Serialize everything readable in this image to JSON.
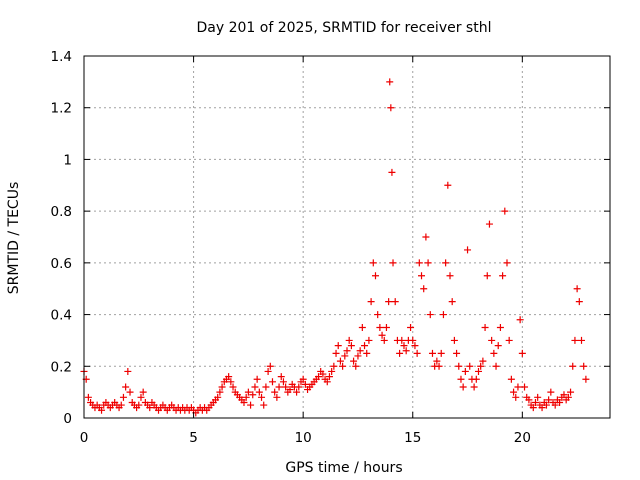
{
  "chart_data": {
    "type": "scatter",
    "title": "Day 201 of 2025, SRMTID for receiver sthl",
    "xlabel": "GPS time / hours",
    "ylabel": "SRMTID / TECUs",
    "xlim": [
      0,
      24
    ],
    "ylim": [
      0,
      1.4
    ],
    "xticks": [
      0,
      5,
      10,
      15,
      20
    ],
    "xtick_labels": [
      "0",
      "5",
      "10",
      "15",
      "20"
    ],
    "yticks": [
      0,
      0.2,
      0.4,
      0.6,
      0.8,
      1,
      1.2,
      1.4
    ],
    "ytick_labels": [
      "0",
      "0.2",
      "0.4",
      "0.6",
      "0.8",
      "1",
      "1.2",
      "1.4"
    ],
    "grid": true,
    "marker": "+",
    "color": "#ee0000",
    "series": [
      {
        "name": "SRMTID sthl",
        "x": [
          0.0,
          0.1,
          0.2,
          0.3,
          0.4,
          0.5,
          0.6,
          0.7,
          0.8,
          0.9,
          1.0,
          1.1,
          1.2,
          1.3,
          1.4,
          1.5,
          1.6,
          1.7,
          1.8,
          1.9,
          2.0,
          2.1,
          2.2,
          2.3,
          2.4,
          2.5,
          2.6,
          2.7,
          2.8,
          2.9,
          3.0,
          3.1,
          3.2,
          3.3,
          3.4,
          3.5,
          3.6,
          3.7,
          3.8,
          3.9,
          4.0,
          4.1,
          4.2,
          4.3,
          4.4,
          4.5,
          4.6,
          4.7,
          4.8,
          4.9,
          5.0,
          5.1,
          5.2,
          5.3,
          5.4,
          5.5,
          5.6,
          5.7,
          5.8,
          5.9,
          6.0,
          6.1,
          6.2,
          6.3,
          6.4,
          6.5,
          6.6,
          6.7,
          6.8,
          6.9,
          7.0,
          7.1,
          7.2,
          7.3,
          7.4,
          7.5,
          7.6,
          7.7,
          7.8,
          7.9,
          8.0,
          8.1,
          8.2,
          8.3,
          8.4,
          8.5,
          8.6,
          8.7,
          8.8,
          8.9,
          9.0,
          9.1,
          9.2,
          9.3,
          9.4,
          9.5,
          9.6,
          9.7,
          9.8,
          9.9,
          10.0,
          10.1,
          10.2,
          10.3,
          10.4,
          10.5,
          10.6,
          10.7,
          10.8,
          10.9,
          11.0,
          11.1,
          11.2,
          11.3,
          11.4,
          11.5,
          11.6,
          11.7,
          11.8,
          11.9,
          12.0,
          12.1,
          12.2,
          12.3,
          12.4,
          12.5,
          12.6,
          12.7,
          12.8,
          12.9,
          13.0,
          13.1,
          13.2,
          13.3,
          13.4,
          13.5,
          13.6,
          13.7,
          13.8,
          13.9,
          13.95,
          14.0,
          14.05,
          14.1,
          14.2,
          14.3,
          14.4,
          14.5,
          14.6,
          14.7,
          14.8,
          14.9,
          15.0,
          15.1,
          15.2,
          15.3,
          15.4,
          15.5,
          15.6,
          15.7,
          15.8,
          15.9,
          16.0,
          16.1,
          16.2,
          16.3,
          16.4,
          16.5,
          16.6,
          16.7,
          16.8,
          16.9,
          17.0,
          17.1,
          17.2,
          17.3,
          17.4,
          17.5,
          17.6,
          17.7,
          17.8,
          17.9,
          18.0,
          18.1,
          18.2,
          18.3,
          18.4,
          18.5,
          18.6,
          18.7,
          18.8,
          18.9,
          19.0,
          19.1,
          19.2,
          19.3,
          19.4,
          19.5,
          19.6,
          19.7,
          19.8,
          19.9,
          20.0,
          20.1,
          20.2,
          20.3,
          20.4,
          20.5,
          20.6,
          20.7,
          20.8,
          20.9,
          21.0,
          21.1,
          21.2,
          21.3,
          21.4,
          21.5,
          21.6,
          21.7,
          21.8,
          21.9,
          22.0,
          22.1,
          22.2,
          22.3,
          22.4,
          22.5,
          22.6,
          22.7,
          22.8,
          22.9
        ],
        "y": [
          0.18,
          0.15,
          0.08,
          0.06,
          0.05,
          0.04,
          0.05,
          0.04,
          0.03,
          0.05,
          0.06,
          0.05,
          0.04,
          0.05,
          0.06,
          0.05,
          0.04,
          0.05,
          0.08,
          0.12,
          0.18,
          0.1,
          0.06,
          0.05,
          0.04,
          0.05,
          0.08,
          0.1,
          0.06,
          0.05,
          0.04,
          0.06,
          0.05,
          0.04,
          0.03,
          0.04,
          0.05,
          0.04,
          0.03,
          0.04,
          0.05,
          0.04,
          0.03,
          0.04,
          0.03,
          0.04,
          0.03,
          0.04,
          0.03,
          0.04,
          0.03,
          0.02,
          0.03,
          0.04,
          0.03,
          0.04,
          0.03,
          0.04,
          0.05,
          0.06,
          0.07,
          0.08,
          0.1,
          0.12,
          0.14,
          0.15,
          0.16,
          0.14,
          0.12,
          0.1,
          0.09,
          0.08,
          0.07,
          0.06,
          0.08,
          0.1,
          0.05,
          0.09,
          0.12,
          0.15,
          0.1,
          0.08,
          0.05,
          0.12,
          0.18,
          0.2,
          0.14,
          0.1,
          0.08,
          0.12,
          0.16,
          0.14,
          0.12,
          0.1,
          0.11,
          0.13,
          0.12,
          0.1,
          0.12,
          0.14,
          0.15,
          0.13,
          0.11,
          0.12,
          0.13,
          0.14,
          0.15,
          0.16,
          0.18,
          0.17,
          0.15,
          0.14,
          0.16,
          0.18,
          0.2,
          0.25,
          0.28,
          0.22,
          0.2,
          0.24,
          0.26,
          0.3,
          0.28,
          0.22,
          0.2,
          0.24,
          0.26,
          0.35,
          0.28,
          0.25,
          0.3,
          0.45,
          0.6,
          0.55,
          0.4,
          0.35,
          0.32,
          0.3,
          0.35,
          0.45,
          1.3,
          1.2,
          0.95,
          0.6,
          0.45,
          0.3,
          0.25,
          0.3,
          0.28,
          0.26,
          0.3,
          0.35,
          0.3,
          0.28,
          0.25,
          0.6,
          0.55,
          0.5,
          0.7,
          0.6,
          0.4,
          0.25,
          0.2,
          0.22,
          0.2,
          0.25,
          0.4,
          0.6,
          0.9,
          0.55,
          0.45,
          0.3,
          0.25,
          0.2,
          0.15,
          0.12,
          0.18,
          0.65,
          0.2,
          0.15,
          0.12,
          0.15,
          0.18,
          0.2,
          0.22,
          0.35,
          0.55,
          0.75,
          0.3,
          0.25,
          0.2,
          0.28,
          0.35,
          0.55,
          0.8,
          0.6,
          0.3,
          0.15,
          0.1,
          0.08,
          0.12,
          0.38,
          0.25,
          0.12,
          0.08,
          0.07,
          0.05,
          0.04,
          0.06,
          0.08,
          0.05,
          0.04,
          0.06,
          0.05,
          0.07,
          0.1,
          0.06,
          0.05,
          0.07,
          0.06,
          0.08,
          0.09,
          0.07,
          0.08,
          0.1,
          0.2,
          0.3,
          0.5,
          0.45,
          0.3,
          0.2,
          0.15
        ]
      }
    ]
  }
}
